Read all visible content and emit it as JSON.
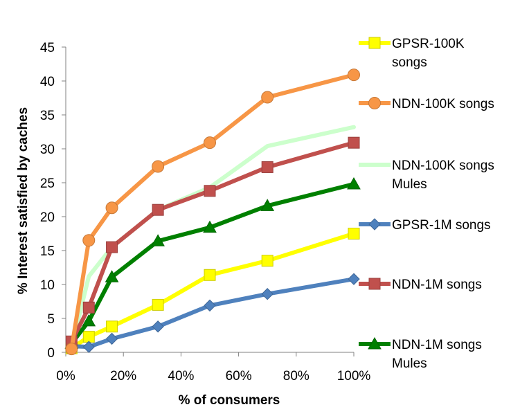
{
  "chart_data": {
    "type": "line",
    "title": "",
    "xlabel": "% of consumers",
    "ylabel": "% Interest satisfied by caches",
    "xlim": [
      0,
      1
    ],
    "ylim": [
      0,
      45
    ],
    "xticks": [
      0,
      0.2,
      0.4,
      0.6,
      0.8,
      1.0
    ],
    "xtick_labels": [
      "0%",
      "20%",
      "40%",
      "60%",
      "80%",
      "100%"
    ],
    "yticks": [
      0,
      5,
      10,
      15,
      20,
      25,
      30,
      35,
      40,
      45
    ],
    "ytick_labels": [
      "0",
      "5",
      "10",
      "15",
      "20",
      "25",
      "30",
      "35",
      "40",
      "45"
    ],
    "grid": false,
    "legend_position": "right",
    "series": [
      {
        "name": "GPSR-100K songs",
        "legend_lines": [
          "GPSR-100K",
          "songs"
        ],
        "color": "#ffff00",
        "marker": "square",
        "x": [
          0.02,
          0.08,
          0.16,
          0.32,
          0.5,
          0.7,
          1.0
        ],
        "y": [
          0.6,
          2.3,
          3.8,
          7.0,
          11.4,
          13.5,
          17.5
        ]
      },
      {
        "name": "NDN-100K songs",
        "legend_lines": [
          "NDN-100K songs"
        ],
        "color": "#f79646",
        "marker": "circle",
        "x": [
          0.02,
          0.08,
          0.16,
          0.32,
          0.5,
          0.7,
          1.0
        ],
        "y": [
          0.5,
          16.5,
          21.3,
          27.4,
          30.9,
          37.6,
          40.9
        ]
      },
      {
        "name": "NDN-100K songs Mules",
        "legend_lines": [
          "NDN-100K songs",
          "Mules"
        ],
        "color": "#ccffcc",
        "marker": "none",
        "x": [
          0.02,
          0.08,
          0.16,
          0.32,
          0.5,
          0.7,
          1.0
        ],
        "y": [
          0.8,
          11.2,
          15.5,
          21.0,
          24.3,
          30.4,
          33.2
        ]
      },
      {
        "name": "GPSR-1M songs",
        "legend_lines": [
          "GPSR-1M songs"
        ],
        "color": "#4f81bd",
        "marker": "diamond",
        "x": [
          0.02,
          0.08,
          0.16,
          0.32,
          0.5,
          0.7,
          1.0
        ],
        "y": [
          0.9,
          0.8,
          2.0,
          3.8,
          6.9,
          8.6,
          10.8
        ]
      },
      {
        "name": "NDN-1M songs",
        "legend_lines": [
          "NDN-1M songs"
        ],
        "color": "#c0504d",
        "marker": "square",
        "x": [
          0.02,
          0.08,
          0.16,
          0.32,
          0.5,
          0.7,
          1.0
        ],
        "y": [
          1.6,
          6.6,
          15.5,
          21.0,
          23.8,
          27.3,
          30.9
        ]
      },
      {
        "name": "NDN-1M songs Mules",
        "legend_lines": [
          "NDN-1M songs",
          "Mules"
        ],
        "color": "#008000",
        "marker": "triangle",
        "x": [
          0.02,
          0.08,
          0.16,
          0.32,
          0.5,
          0.7,
          1.0
        ],
        "y": [
          1.3,
          4.6,
          11.1,
          16.4,
          18.4,
          21.6,
          24.8
        ]
      }
    ]
  }
}
